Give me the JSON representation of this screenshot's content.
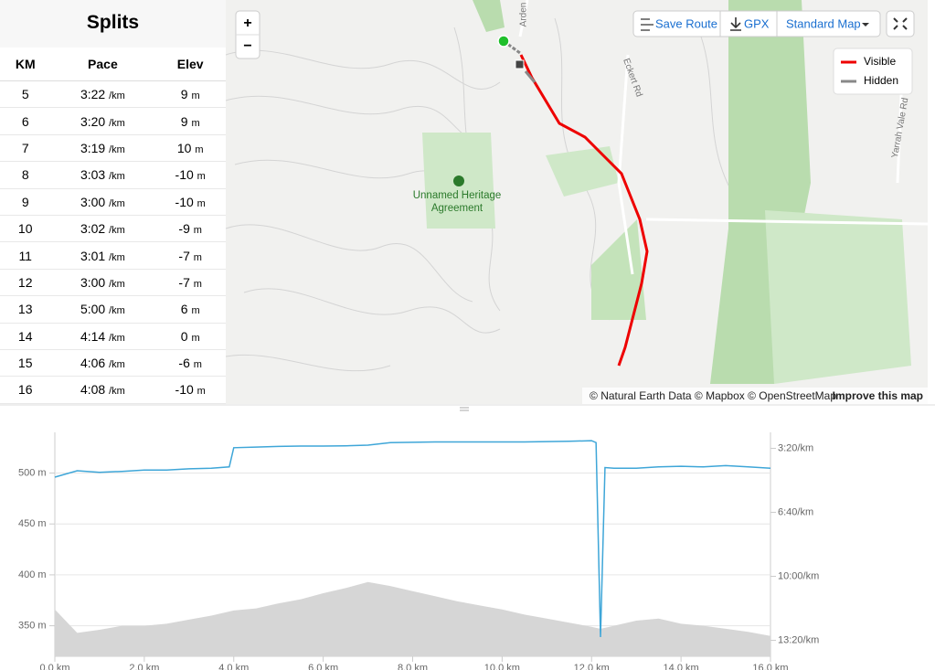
{
  "splits": {
    "title": "Splits",
    "headers": [
      "KM",
      "Pace",
      "Elev"
    ],
    "pace_unit": "/km",
    "elev_unit": "m",
    "rows": [
      {
        "km": "5",
        "pace": "3:22",
        "elev": "9"
      },
      {
        "km": "6",
        "pace": "3:20",
        "elev": "9"
      },
      {
        "km": "7",
        "pace": "3:19",
        "elev": "10"
      },
      {
        "km": "8",
        "pace": "3:03",
        "elev": "-10"
      },
      {
        "km": "9",
        "pace": "3:00",
        "elev": "-10"
      },
      {
        "km": "10",
        "pace": "3:02",
        "elev": "-9"
      },
      {
        "km": "11",
        "pace": "3:01",
        "elev": "-7"
      },
      {
        "km": "12",
        "pace": "3:00",
        "elev": "-7"
      },
      {
        "km": "13",
        "pace": "5:00",
        "elev": "6"
      },
      {
        "km": "14",
        "pace": "4:14",
        "elev": "0"
      },
      {
        "km": "15",
        "pace": "4:06",
        "elev": "-6"
      },
      {
        "km": "16",
        "pace": "4:08",
        "elev": "-10"
      }
    ]
  },
  "map": {
    "zoom_in": "+",
    "zoom_out": "−",
    "save_route": "Save Route",
    "gpx": "GPX",
    "map_style": "Standard Map",
    "legend": [
      "Visible",
      "Hidden"
    ],
    "place_label": [
      "Unnamed Heritage",
      "Agreement"
    ],
    "roads": [
      "Arden",
      "Eckert Rd",
      "Yarrah Vale Rd"
    ],
    "attribution": "© Natural Earth Data © Mapbox © OpenStreetMap",
    "improve": "Improve this map"
  },
  "chart_data": {
    "type": "line",
    "x": [
      0,
      0.5,
      1,
      1.5,
      2,
      2.5,
      3,
      3.5,
      3.9,
      4.0,
      4.5,
      5,
      5.5,
      6,
      6.5,
      7,
      7.5,
      8,
      8.5,
      9,
      9.5,
      10,
      10.5,
      11,
      11.5,
      12,
      12.1,
      12.2,
      12.3,
      12.5,
      13,
      13.5,
      14,
      14.5,
      15,
      15.5,
      16
    ],
    "series": [
      {
        "type": "area",
        "color": "#d6d6d6",
        "values": [
          366,
          343,
          346,
          350,
          350,
          352,
          356,
          360,
          364,
          365,
          367,
          372,
          376,
          382,
          387,
          393,
          389,
          384,
          379,
          374,
          370,
          366,
          361,
          357,
          353,
          349,
          348,
          347,
          348,
          350,
          355,
          357,
          352,
          350,
          347,
          344,
          340
        ]
      },
      {
        "type": "line",
        "color": "#3ea6d8",
        "axis": "y2",
        "values": [
          290,
          270,
          275,
          272,
          268,
          268,
          264,
          262,
          258,
          198,
          196,
          194,
          193,
          193,
          192,
          190,
          182,
          181,
          180,
          180,
          180,
          180,
          180,
          179,
          178,
          176,
          182,
          790,
          260,
          262,
          262,
          258,
          256,
          258,
          254,
          258,
          262
        ]
      }
    ],
    "xlim": [
      0,
      16
    ],
    "xticks": [
      {
        "value": 0,
        "label": "0.0 km"
      },
      {
        "value": 2,
        "label": "2.0 km"
      },
      {
        "value": 4,
        "label": "4.0 km"
      },
      {
        "value": 6,
        "label": "6.0 km"
      },
      {
        "value": 8,
        "label": "8.0 km"
      },
      {
        "value": 10,
        "label": "10.0 km"
      },
      {
        "value": 12,
        "label": "12.0 km"
      },
      {
        "value": 14,
        "label": "14.0 km"
      },
      {
        "value": 16,
        "label": "16.0 km"
      }
    ],
    "ylim": [
      320,
      540
    ],
    "yticks": [
      {
        "value": 350,
        "label": "350 m"
      },
      {
        "value": 400,
        "label": "400 m"
      },
      {
        "value": 450,
        "label": "450 m"
      },
      {
        "value": 500,
        "label": "500 m"
      }
    ],
    "y2lim": [
      850,
      150
    ],
    "y2ticks": [
      {
        "value": 200,
        "label": "3:20/km"
      },
      {
        "value": 400,
        "label": "6:40/km"
      },
      {
        "value": 600,
        "label": "10:00/km"
      },
      {
        "value": 800,
        "label": "13:20/km"
      }
    ],
    "grid": true
  }
}
